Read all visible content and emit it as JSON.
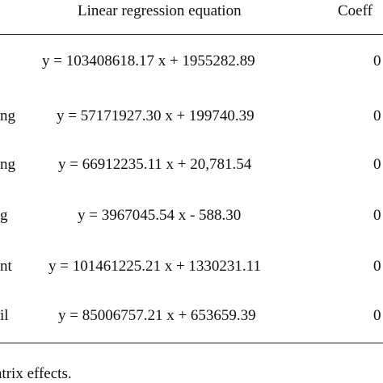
{
  "table": {
    "headers": {
      "equation": "Linear regression equation",
      "coefficient": "Coeff"
    },
    "rows": [
      {
        "label": "",
        "equation": "y = 103408618.17 x + 1955282.89",
        "coefficient": "0"
      },
      {
        "label": "ng",
        "equation": "y = 57171927.30 x + 199740.39",
        "coefficient": "0"
      },
      {
        "label": "ng",
        "equation": "y = 66912235.11 x + 20,781.54",
        "coefficient": "0"
      },
      {
        "label": "g",
        "equation": "y = 3967045.54 x - 588.30",
        "coefficient": "0"
      },
      {
        "label": "nt",
        "equation": "y = 101461225.21 x + 1330231.11",
        "coefficient": "0"
      },
      {
        "label": "il",
        "equation": "y = 85006757.21 x + 653659.39",
        "coefficient": "0"
      }
    ]
  },
  "footnote": "atrix effects."
}
